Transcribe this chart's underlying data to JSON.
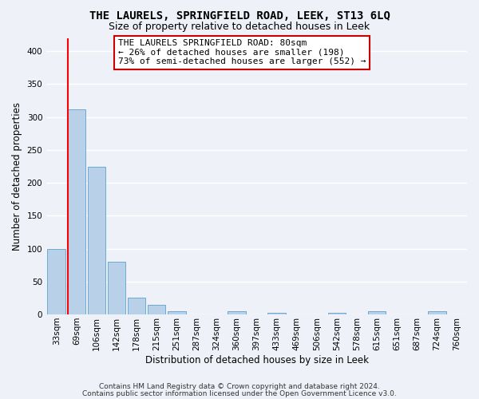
{
  "title": "THE LAURELS, SPRINGFIELD ROAD, LEEK, ST13 6LQ",
  "subtitle": "Size of property relative to detached houses in Leek",
  "xlabel": "Distribution of detached houses by size in Leek",
  "ylabel": "Number of detached properties",
  "bin_labels": [
    "33sqm",
    "69sqm",
    "106sqm",
    "142sqm",
    "178sqm",
    "215sqm",
    "251sqm",
    "287sqm",
    "324sqm",
    "360sqm",
    "397sqm",
    "433sqm",
    "469sqm",
    "506sqm",
    "542sqm",
    "578sqm",
    "615sqm",
    "651sqm",
    "687sqm",
    "724sqm",
    "760sqm"
  ],
  "bar_heights": [
    99,
    312,
    224,
    80,
    25,
    14,
    5,
    0,
    0,
    5,
    0,
    2,
    0,
    0,
    3,
    0,
    5,
    0,
    0,
    5,
    0
  ],
  "bar_color": "#b8d0e8",
  "bar_edge_color": "#6aaad4",
  "red_line_x": 1.0,
  "annotation_line1": "THE LAURELS SPRINGFIELD ROAD: 80sqm",
  "annotation_line2": "← 26% of detached houses are smaller (198)",
  "annotation_line3": "73% of semi-detached houses are larger (552) →",
  "annotation_box_facecolor": "#ffffff",
  "annotation_box_edgecolor": "#cc0000",
  "ylim": [
    0,
    420
  ],
  "yticks": [
    0,
    50,
    100,
    150,
    200,
    250,
    300,
    350,
    400
  ],
  "footer_line1": "Contains HM Land Registry data © Crown copyright and database right 2024.",
  "footer_line2": "Contains public sector information licensed under the Open Government Licence v3.0.",
  "bg_color": "#eef2f8",
  "grid_color": "#ffffff",
  "title_fontsize": 10,
  "subtitle_fontsize": 9,
  "axis_label_fontsize": 8.5,
  "tick_fontsize": 7.5,
  "annotation_fontsize": 8,
  "footer_fontsize": 6.5
}
